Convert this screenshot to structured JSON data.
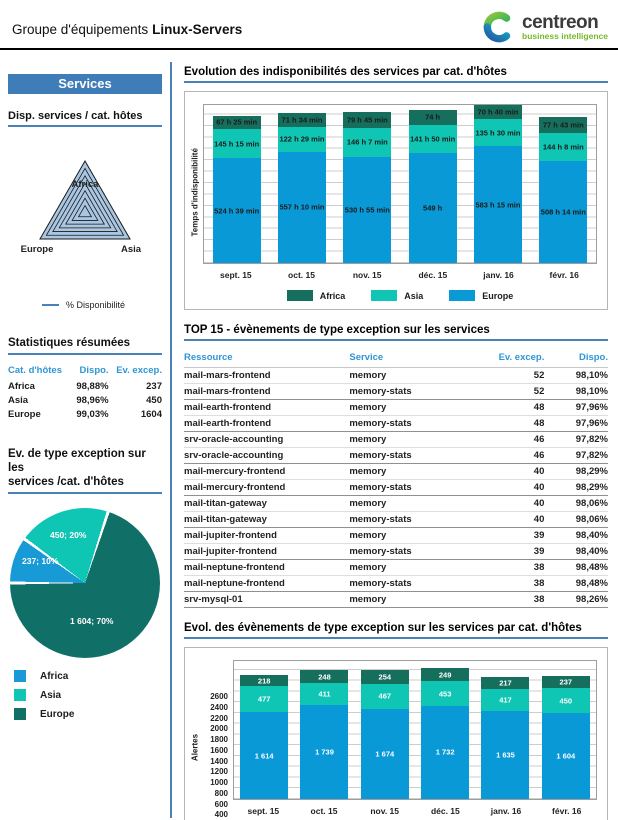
{
  "header": {
    "title_prefix": "Groupe d'équipements",
    "title_group": "Linux-Servers",
    "logo_brand": "centreon",
    "logo_tagline": "business intelligence"
  },
  "colors": {
    "europe_blue": "#0899d6",
    "asia_teal": "#0fc6b4",
    "africa_green": "#166f5d",
    "pie_africa_blue": "#189ad6",
    "pie_asia_teal": "#0fc6b4",
    "pie_europe_teal": "#107068",
    "accent_blue": "#4a81b8",
    "table_header_blue": "#2e96d6"
  },
  "sidebar": {
    "banner": "Services",
    "radar_section_title": "Disp. services / cat. hôtes",
    "radar_legend": "% Disponibilité",
    "stats_title": "Statistiques résumées",
    "stats_columns": [
      "Cat. d'hôtes",
      "Dispo.",
      "Ev. excep."
    ],
    "stats_rows": [
      [
        "Africa",
        "98,88%",
        "237"
      ],
      [
        "Asia",
        "98,96%",
        "450"
      ],
      [
        "Europe",
        "99,03%",
        "1604"
      ]
    ],
    "pie_section_title_line1": "Ev. de type exception sur les",
    "pie_section_title_line2": "services /cat. d'hôtes"
  },
  "main": {
    "section1_title": "Evolution des indisponibilités des services par cat. d'hôtes",
    "section2_title": "TOP 15 - évènements de type exception sur les services",
    "section3_title": "Evol. des évènements de type exception sur les services par cat. d'hôtes",
    "top15": {
      "columns": [
        "Ressource",
        "Service",
        "Ev. excep.",
        "Dispo."
      ],
      "rows": [
        [
          "mail-mars-frontend",
          "memory",
          "52",
          "98,10%"
        ],
        [
          "mail-mars-frontend",
          "memory-stats",
          "52",
          "98,10%"
        ],
        [
          "mail-earth-frontend",
          "memory",
          "48",
          "97,96%"
        ],
        [
          "mail-earth-frontend",
          "memory-stats",
          "48",
          "97,96%"
        ],
        [
          "srv-oracle-accounting",
          "memory",
          "46",
          "97,82%"
        ],
        [
          "srv-oracle-accounting",
          "memory-stats",
          "46",
          "97,82%"
        ],
        [
          "mail-mercury-frontend",
          "memory",
          "40",
          "98,29%"
        ],
        [
          "mail-mercury-frontend",
          "memory-stats",
          "40",
          "98,29%"
        ],
        [
          "mail-titan-gateway",
          "memory",
          "40",
          "98,06%"
        ],
        [
          "mail-titan-gateway",
          "memory-stats",
          "40",
          "98,06%"
        ],
        [
          "mail-jupiter-frontend",
          "memory",
          "39",
          "98,40%"
        ],
        [
          "mail-jupiter-frontend",
          "memory-stats",
          "39",
          "98,40%"
        ],
        [
          "mail-neptune-frontend",
          "memory",
          "38",
          "98,48%"
        ],
        [
          "mail-neptune-frontend",
          "memory-stats",
          "38",
          "98,48%"
        ],
        [
          "srv-mysql-01",
          "memory",
          "38",
          "98,26%"
        ]
      ]
    }
  },
  "chart_data": [
    {
      "type": "bar",
      "title": "Evolution des indisponibilités des services par cat. d'hôtes",
      "ylabel": "Temps d'indisponibilité",
      "xlabel": "",
      "categories": [
        "sept. 15",
        "oct. 15",
        "nov. 15",
        "déc. 15",
        "janv. 16",
        "févr. 16"
      ],
      "series": [
        {
          "name": "Europe",
          "color": "#0899d6",
          "values": [
            524.65,
            557.17,
            530.92,
            549,
            583.25,
            508.23
          ],
          "labels": [
            "524 h 39 min",
            "557 h 10 min",
            "530 h 55 min",
            "549 h",
            "583 h 15 min",
            "508 h 14 min"
          ]
        },
        {
          "name": "Asia",
          "color": "#0fc6b4",
          "values": [
            145.25,
            122.48,
            146.12,
            141.83,
            135.5,
            144.13
          ],
          "labels": [
            "145 h 15 min",
            "122 h 29 min",
            "146 h 7 min",
            "141 h 50 min",
            "135 h 30 min",
            "144 h 8 min"
          ]
        },
        {
          "name": "Africa",
          "color": "#166f5d",
          "values": [
            67.42,
            71.57,
            79.75,
            74,
            70.67,
            77.72
          ],
          "labels": [
            "67 h 25 min",
            "71 h 34 min",
            "79 h 45 min",
            "74 h",
            "70 h 40 min",
            "77 h 43 min"
          ]
        }
      ],
      "ylim": [
        0,
        800
      ],
      "grid": true,
      "legend_position": "bottom",
      "legend_order": [
        "Africa",
        "Asia",
        "Europe"
      ],
      "label_color": "#1a1a1a"
    },
    {
      "type": "bar",
      "title": "Evol. des évènements de type exception sur les services par cat. d'hôtes",
      "ylabel": "Alertes",
      "xlabel": "",
      "categories": [
        "sept. 15",
        "oct. 15",
        "nov. 15",
        "déc. 15",
        "janv. 16",
        "févr. 16"
      ],
      "series": [
        {
          "name": "Europe",
          "color": "#0899d6",
          "values": [
            1614,
            1739,
            1674,
            1732,
            1635,
            1604
          ],
          "labels": [
            "1 614",
            "1 739",
            "1 674",
            "1 732",
            "1 635",
            "1 604"
          ]
        },
        {
          "name": "Asia",
          "color": "#0fc6b4",
          "values": [
            477,
            411,
            467,
            453,
            417,
            450
          ],
          "labels": [
            "477",
            "411",
            "467",
            "453",
            "417",
            "450"
          ]
        },
        {
          "name": "Africa",
          "color": "#166f5d",
          "values": [
            218,
            248,
            254,
            249,
            217,
            237
          ],
          "labels": [
            "218",
            "248",
            "254",
            "249",
            "217",
            "237"
          ]
        }
      ],
      "ylim": [
        0,
        2600
      ],
      "ytick_step": 200,
      "grid": true,
      "legend_position": "bottom",
      "legend_order": [
        "Africa",
        "Asia",
        "Europe"
      ],
      "label_color": "#ffffff"
    },
    {
      "type": "pie",
      "title": "Ev. de type exception sur les services /cat. d'hôtes",
      "slices": [
        {
          "name": "Africa",
          "value": 237,
          "pct": 10,
          "color": "#189ad6",
          "label": "237; 10%"
        },
        {
          "name": "Asia",
          "value": 450,
          "pct": 20,
          "color": "#0fc6b4",
          "label": "450; 20%"
        },
        {
          "name": "Europe",
          "value": 1604,
          "pct": 70,
          "color": "#107068",
          "label": "1 604; 70%"
        }
      ],
      "start_angle_deg_from_top": 270,
      "legend_position": "bottom-left"
    },
    {
      "type": "radar",
      "title": "Disp. services / cat. hôtes",
      "categories": [
        "Africa",
        "Asia",
        "Europe"
      ],
      "series": [
        {
          "name": "% Disponibilité",
          "values": [
            98.88,
            98.96,
            99.03
          ]
        }
      ],
      "rings": 7,
      "fill_color": "#a9c7e3"
    }
  ]
}
